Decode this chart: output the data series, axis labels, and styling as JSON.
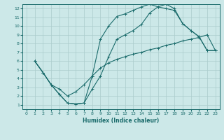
{
  "xlabel": "Humidex (Indice chaleur)",
  "bg_color": "#cce8e8",
  "grid_color": "#aacccc",
  "line_color": "#1a6b6b",
  "xlim": [
    -0.5,
    23.5
  ],
  "ylim": [
    0.5,
    12.5
  ],
  "xticks": [
    0,
    1,
    2,
    3,
    4,
    5,
    6,
    7,
    8,
    9,
    10,
    11,
    12,
    13,
    14,
    15,
    16,
    17,
    18,
    19,
    20,
    21,
    22,
    23
  ],
  "yticks": [
    1,
    2,
    3,
    4,
    5,
    6,
    7,
    8,
    9,
    10,
    11,
    12
  ],
  "curve1_x": [
    1,
    2,
    3,
    4,
    5,
    6,
    7,
    8,
    9,
    10,
    11,
    12,
    13,
    14,
    15,
    16,
    17,
    18,
    19,
    20,
    21,
    22,
    23
  ],
  "curve1_y": [
    6,
    4.7,
    3.3,
    2.2,
    1.2,
    1.1,
    1.2,
    2.8,
    4.3,
    6.5,
    8.5,
    9.0,
    9.5,
    10.2,
    11.5,
    12.2,
    12.5,
    12.0,
    10.3,
    9.5,
    8.8,
    7.2,
    7.2
  ],
  "curve2_x": [
    1,
    2,
    3,
    4,
    5,
    6,
    7,
    8,
    9,
    10,
    11,
    12,
    13,
    14,
    15,
    16,
    17,
    18,
    19,
    20,
    21,
    22,
    23
  ],
  "curve2_y": [
    6,
    4.7,
    3.3,
    2.2,
    1.2,
    1.1,
    1.2,
    4.3,
    8.5,
    10.0,
    11.1,
    11.4,
    11.8,
    12.2,
    12.5,
    12.2,
    12.0,
    11.8,
    10.3,
    9.5,
    8.8,
    7.2,
    7.2
  ],
  "curve3_x": [
    1,
    2,
    3,
    4,
    5,
    6,
    7,
    8,
    9,
    10,
    11,
    12,
    13,
    14,
    15,
    16,
    17,
    18,
    19,
    20,
    21,
    22,
    23
  ],
  "curve3_y": [
    6,
    4.7,
    3.3,
    2.8,
    2.0,
    2.5,
    3.3,
    4.3,
    5.2,
    5.8,
    6.2,
    6.5,
    6.8,
    7.0,
    7.3,
    7.5,
    7.8,
    8.0,
    8.3,
    8.5,
    8.7,
    9.0,
    7.2
  ]
}
